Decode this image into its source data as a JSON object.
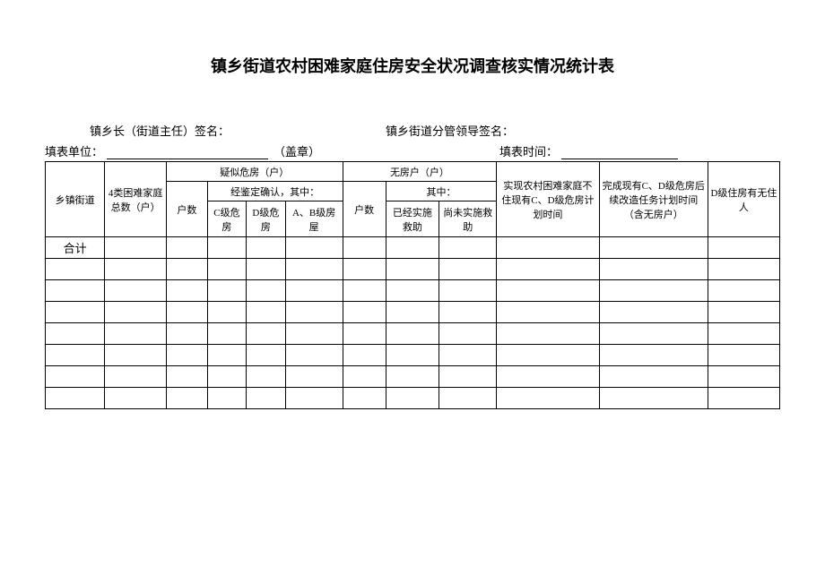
{
  "title": "镇乡街道农村困难家庭住房安全状况调查核实情况统计表",
  "signLine": {
    "leftLabel": "镇乡长（街道主任）签名：",
    "rightLabel": "镇乡街道分管领导签名："
  },
  "formLine": {
    "unitLabel": "填表单位：",
    "stamp": "（盖章）",
    "timeLabel": "填表时间："
  },
  "headers": {
    "col_town": "乡镇街道",
    "col_total": "4类困难家庭总数（户）",
    "group_suspect": "疑似危房（户）",
    "group_nohouse": "无房户（户）",
    "col_plan1": "实现农村困难家庭不住现有C、D级危房计划时间",
    "col_plan2": "完成现有C、D级危房后续改造任务计划时间（含无房户）",
    "col_dju": "D级住房有无住人",
    "col_hushu": "户数",
    "group_confirm": "经鉴定确认，其中：",
    "group_among": "其中：",
    "col_c": "C级危房",
    "col_d": "D级危房",
    "col_ab": "A、B级房屋",
    "col_done": "已经实施救助",
    "col_notdone": "尚未实施救助"
  },
  "rows": {
    "heji": "合计"
  },
  "style": {
    "background": "#ffffff",
    "border_color": "#000000",
    "title_fontsize": 18,
    "header_fontsize": 11,
    "empty_data_rows": 7
  }
}
